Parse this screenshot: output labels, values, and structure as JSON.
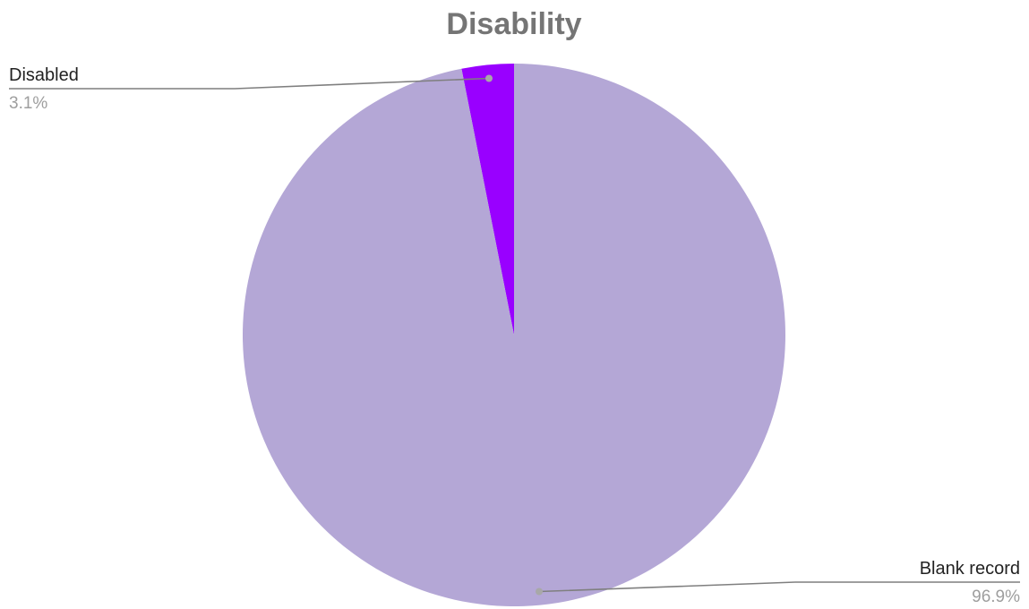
{
  "chart_data": {
    "type": "pie",
    "title": "Disability",
    "slices": [
      {
        "label": "Disabled",
        "value": 3.1,
        "display": "3.1%",
        "color": "#9900ff"
      },
      {
        "label": "Blank record",
        "value": 96.9,
        "display": "96.9%",
        "color": "#b4a7d6"
      }
    ],
    "start_angle_deg": 0,
    "direction": "counterclockwise",
    "legend": "none"
  },
  "colors": {
    "title": "#757575",
    "label_text": "#222222",
    "value_text": "#9e9e9e",
    "leader_line": "#7f7f7f"
  }
}
